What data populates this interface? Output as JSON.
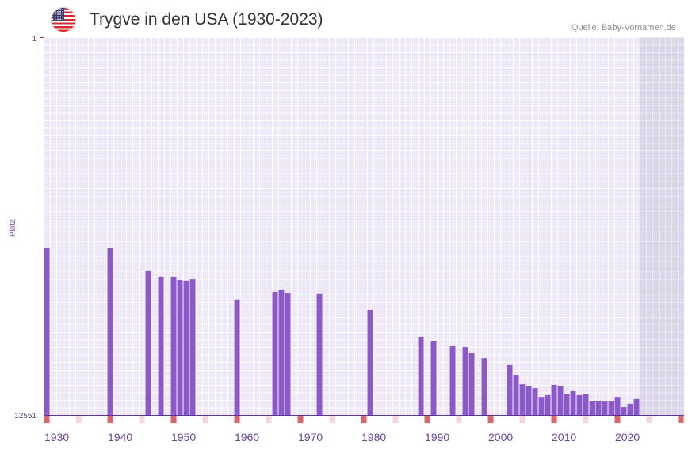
{
  "icons": {
    "flag": "us-flag-icon"
  },
  "colors": {
    "bar": "#8c5ac8",
    "x_axis": "#5e3394",
    "y_axis": "#9b2d4a",
    "decade_marker": "#dc646d",
    "half_decade_marker": "#f6d4db",
    "tick_label": "#6a45a8",
    "future_shade": "#6b5a8a"
  },
  "chart_data": {
    "type": "bar",
    "title": "Trygve in den USA (1930-2023)",
    "source": "Quelle: Baby-Vornamen.de",
    "ylabel": "Platz",
    "xlim": [
      1930,
      2030
    ],
    "ylim": [
      1,
      12551
    ],
    "y_inverted": true,
    "x_ticks": [
      1930,
      1940,
      1950,
      1960,
      1970,
      1980,
      1990,
      2000,
      2010,
      2020
    ],
    "future_range": [
      2024,
      2030
    ],
    "x": [
      1930,
      1940,
      1946,
      1948,
      1950,
      1951,
      1952,
      1953,
      1960,
      1966,
      1967,
      1968,
      1973,
      1981,
      1989,
      1991,
      1994,
      1996,
      1997,
      1999,
      2003,
      2004,
      2005,
      2006,
      2007,
      2008,
      2009,
      2010,
      2011,
      2012,
      2013,
      2014,
      2015,
      2016,
      2017,
      2018,
      2019,
      2020,
      2021,
      2022,
      2023
    ],
    "values": [
      7000,
      7000,
      7760,
      7970,
      7970,
      8050,
      8100,
      8030,
      8730,
      8470,
      8390,
      8500,
      8520,
      9050,
      9950,
      10080,
      10260,
      10290,
      10500,
      10660,
      10890,
      11210,
      11530,
      11600,
      11660,
      11950,
      11890,
      11550,
      11580,
      11840,
      11760,
      11890,
      11840,
      12100,
      12080,
      12080,
      12100,
      11950,
      12290,
      12180,
      12020
    ]
  }
}
